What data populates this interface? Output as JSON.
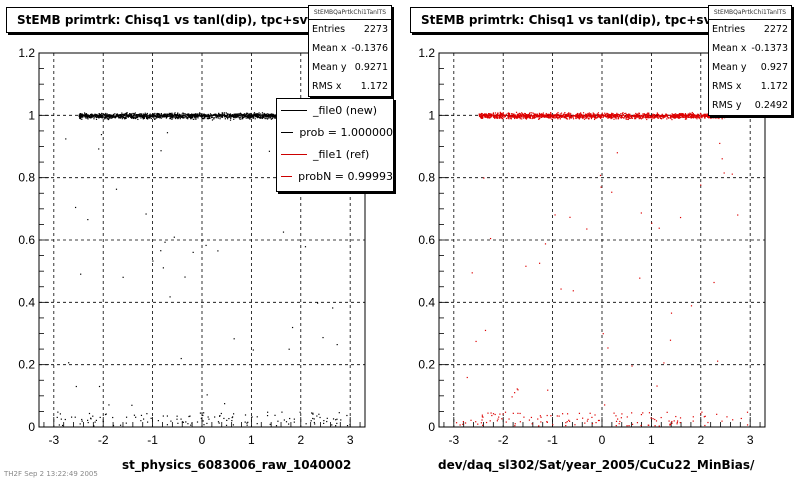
{
  "panels": [
    {
      "title": "StEMB primtrk: Chisq1 vs tanl(dip), tpc+svt",
      "stats": {
        "name": "StEMBQaPrtkChi1TanlTS",
        "rows": [
          {
            "label": "Entries",
            "value": "2273"
          },
          {
            "label": "Mean x",
            "value": "-0.1376"
          },
          {
            "label": "Mean y",
            "value": "0.9271"
          },
          {
            "label": "RMS x",
            "value": "1.172"
          }
        ]
      },
      "legend": [
        {
          "label": "_file0 (new)",
          "color": "#000000"
        },
        {
          "label": "prob = 1.000000",
          "color": "#000000"
        },
        {
          "label": "_file1 (ref)",
          "color": "#cc0000"
        },
        {
          "label": "probN = 0.99993",
          "color": "#cc0000"
        }
      ],
      "xtitle": "st_physics_6083006_raw_1040002",
      "marker_color": "#000000"
    },
    {
      "title": "StEMB primtrk: Chisq1 vs tanl(dip), tpc+svt",
      "stats": {
        "name": "StEMBQaPrtkChi1TanlTS",
        "rows": [
          {
            "label": "Entries",
            "value": "2272"
          },
          {
            "label": "Mean x",
            "value": "-0.1373"
          },
          {
            "label": "Mean y",
            "value": "0.927"
          },
          {
            "label": "RMS x",
            "value": "1.172"
          },
          {
            "label": "RMS y",
            "value": "0.2492"
          }
        ]
      },
      "xtitle": "dev/daq_sl302/Sat/year_2005/CuCu22_MinBias/",
      "marker_color": "#dd0000"
    }
  ],
  "chart_data": [
    {
      "type": "scatter",
      "title": "StEMB primtrk: Chisq1 vs tanl(dip), tpc+svt",
      "xlabel": "st_physics_6083006_raw_1040002",
      "ylabel": "",
      "xlim": [
        -3.3,
        3.3
      ],
      "ylim": [
        0,
        1.2
      ],
      "xticks": [
        "-3",
        "-2",
        "-1",
        "0",
        "1",
        "2",
        "3"
      ],
      "yticks": [
        "0",
        "0.2",
        "0.4",
        "0.6",
        "0.8",
        "1",
        "1.2"
      ],
      "grid": true,
      "description_of_distribution": {
        "dense_band": {
          "y": 1.0,
          "x_range": [
            -2.5,
            2.5
          ]
        },
        "bottom_band": {
          "y": 0.02,
          "x_range": [
            -3.0,
            3.0
          ]
        },
        "sparse_between": true
      },
      "entries": 2273
    },
    {
      "type": "scatter",
      "title": "StEMB primtrk: Chisq1 vs tanl(dip), tpc+svt",
      "xlabel": "dev/daq_sl302/Sat/year_2005/CuCu22_MinBias/",
      "ylabel": "",
      "xlim": [
        -3.3,
        3.3
      ],
      "ylim": [
        0,
        1.2
      ],
      "xticks": [
        "-3",
        "-2",
        "-1",
        "0",
        "1",
        "2",
        "3"
      ],
      "yticks": [
        "0",
        "0.2",
        "0.4",
        "0.6",
        "0.8",
        "1",
        "1.2"
      ],
      "grid": true,
      "description_of_distribution": {
        "dense_band": {
          "y": 1.0,
          "x_range": [
            -2.5,
            2.5
          ]
        },
        "bottom_band": {
          "y": 0.02,
          "x_range": [
            -3.0,
            3.0
          ]
        },
        "sparse_between": true
      },
      "entries": 2272
    }
  ],
  "footer": "TH2F Sep 2 13:22:49 2005"
}
